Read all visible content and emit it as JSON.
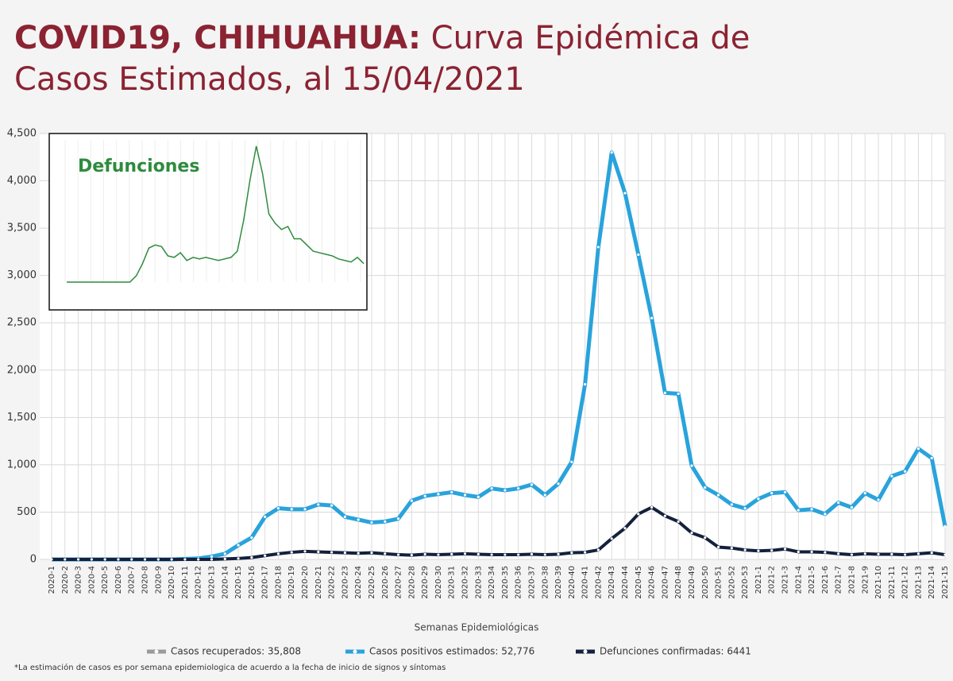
{
  "chart_data": {
    "type": "line",
    "title_bold": "COVID19, CHIHUAHUA:",
    "title": "Curva Epidémica de Casos Estimados, al 15/04/2021",
    "x_label": "Semanas Epidemiológicas",
    "footnote": "*La estimación de casos es por semana epidemiologica de acuerdo a la fecha de inicio de signos y síntomas",
    "categories": [
      "2020-1",
      "2020-2",
      "2020-3",
      "2020-4",
      "2020-5",
      "2020-6",
      "2020-7",
      "2020-8",
      "2020-9",
      "2020-10",
      "2020-11",
      "2020-12",
      "2020-13",
      "2020-14",
      "2020-15",
      "2020-16",
      "2020-17",
      "2020-18",
      "2020-19",
      "2020-20",
      "2020-21",
      "2020-22",
      "2020-23",
      "2020-24",
      "2020-25",
      "2020-26",
      "2020-27",
      "2020-28",
      "2020-29",
      "2020-30",
      "2020-31",
      "2020-32",
      "2020-33",
      "2020-34",
      "2020-35",
      "2020-36",
      "2020-37",
      "2020-38",
      "2020-39",
      "2020-40",
      "2020-41",
      "2020-42",
      "2020-43",
      "2020-44",
      "2020-45",
      "2020-46",
      "2020-47",
      "2020-48",
      "2020-49",
      "2020-50",
      "2020-51",
      "2020-52",
      "2020-53",
      "2021-1",
      "2021-2",
      "2021-3",
      "2021-4",
      "2021-5",
      "2021-6",
      "2021-7",
      "2021-8",
      "2021-9",
      "2021-10",
      "2021-11",
      "2021-12",
      "2021-13",
      "2021-14",
      "2021-15"
    ],
    "series": [
      {
        "name": "Casos recuperados: 35,808",
        "color": "#9a9a9a",
        "values": [
          null,
          null,
          null,
          null,
          null,
          null,
          null,
          null,
          null,
          null,
          null,
          null,
          null,
          null,
          null,
          null,
          null,
          null,
          null,
          null,
          null,
          null,
          null,
          null,
          null,
          null,
          null,
          null,
          null,
          null,
          null,
          null,
          null,
          null,
          null,
          null,
          null,
          null,
          null,
          null,
          null,
          null,
          null,
          null,
          null,
          null,
          null,
          null,
          null,
          null,
          null,
          null,
          null,
          null,
          null,
          null,
          null,
          null,
          null,
          null,
          null,
          null,
          null,
          null,
          null,
          null,
          null,
          null
        ]
      },
      {
        "name": "Casos positivos estimados: 52,776",
        "color": "#29a3dc",
        "values": [
          0,
          0,
          0,
          0,
          0,
          0,
          0,
          0,
          0,
          0,
          5,
          10,
          30,
          60,
          150,
          230,
          450,
          540,
          530,
          530,
          580,
          570,
          450,
          420,
          390,
          400,
          430,
          620,
          670,
          690,
          710,
          680,
          660,
          750,
          730,
          750,
          790,
          680,
          800,
          1030,
          1850,
          3300,
          4300,
          3870,
          3220,
          2550,
          1760,
          1750,
          990,
          760,
          680,
          580,
          540,
          640,
          700,
          710,
          520,
          530,
          480,
          600,
          550,
          700,
          630,
          880,
          930,
          1170,
          1070,
          350
        ]
      },
      {
        "name": "Defunciones confirmadas: 6441",
        "color": "#14213d",
        "values": [
          0,
          0,
          0,
          0,
          0,
          0,
          0,
          0,
          0,
          0,
          0,
          0,
          0,
          5,
          10,
          20,
          40,
          60,
          75,
          85,
          80,
          75,
          70,
          65,
          70,
          60,
          50,
          45,
          55,
          50,
          55,
          60,
          55,
          50,
          50,
          50,
          55,
          50,
          55,
          70,
          75,
          100,
          220,
          330,
          480,
          550,
          460,
          400,
          280,
          230,
          130,
          120,
          100,
          90,
          95,
          110,
          80,
          80,
          75,
          60,
          50,
          60,
          55,
          55,
          50,
          60,
          70,
          50
        ]
      }
    ],
    "ylim": [
      0,
      4500
    ],
    "yticks": [
      0,
      {
        "value": 500,
        "label": "500"
      },
      {
        "value": 1000,
        "label": "1,000"
      },
      {
        "value": 1500,
        "label": "1,500"
      },
      {
        "value": 2000,
        "label": "2,000"
      },
      {
        "value": 2500,
        "label": "2,500"
      },
      {
        "value": 3000,
        "label": "3,000"
      },
      {
        "value": 3500,
        "label": "3,500"
      },
      {
        "value": 4000,
        "label": "4,000"
      },
      {
        "value": 4500,
        "label": "4,500"
      }
    ],
    "grid": true,
    "inset": {
      "title": "Defunciones",
      "color": "#2e8b3e",
      "ylim": [
        0,
        450
      ],
      "values": [
        0,
        0,
        0,
        0,
        0,
        0,
        0,
        0,
        0,
        0,
        0,
        20,
        60,
        110,
        120,
        115,
        85,
        80,
        95,
        70,
        80,
        75,
        80,
        75,
        70,
        75,
        80,
        100,
        200,
        330,
        440,
        350,
        220,
        190,
        170,
        180,
        140,
        140,
        120,
        100,
        95,
        90,
        85,
        75,
        70,
        65,
        80,
        60
      ]
    }
  }
}
